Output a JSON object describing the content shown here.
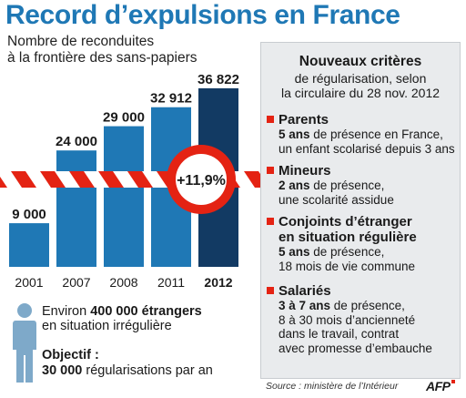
{
  "title": "Record d’expulsions en France",
  "subtitle_lines": [
    "Nombre de reconduites",
    "à la frontière des sans-papiers"
  ],
  "chart_data": {
    "type": "bar",
    "title": "Record d’expulsions en France",
    "subtitle": "Nombre de reconduites à la frontière des sans-papiers",
    "categories": [
      "2001",
      "2007",
      "2008",
      "2011",
      "2012"
    ],
    "values": [
      9000,
      24000,
      29000,
      32912,
      36822
    ],
    "value_labels": [
      "9 000",
      "24 000",
      "29 000",
      "32 912",
      "36 822"
    ],
    "highlight_index": 4,
    "ylim": [
      0,
      40000
    ],
    "annotation": "+11,9%",
    "colors": {
      "bar": "#1f78b5",
      "highlight": "#123a63",
      "barrier_red": "#e42313"
    }
  },
  "info_box": {
    "heading": "Nouveaux critères",
    "subheading_lines": [
      "de régularisation, selon",
      "la circulaire du 28 nov. 2012"
    ],
    "criteria": [
      {
        "title_lines": [
          "Parents"
        ],
        "body_lines": [
          [
            "5 ans",
            " de présence en France,"
          ],
          [
            "",
            "un enfant scolarisé depuis 3 ans"
          ]
        ]
      },
      {
        "title_lines": [
          "Mineurs"
        ],
        "body_lines": [
          [
            "2 ans",
            " de présence,"
          ],
          [
            "",
            "une scolarité assidue"
          ]
        ]
      },
      {
        "title_lines": [
          "Conjoints d’étranger",
          "en situation régulière"
        ],
        "body_lines": [
          [
            "5 ans",
            " de présence,"
          ],
          [
            "",
            "18 mois de vie commune"
          ]
        ]
      },
      {
        "title_lines": [
          "Salariés"
        ],
        "body_lines": [
          [
            "3 à 7 ans",
            " de présence,"
          ],
          [
            "",
            "8 à 30 mois d’ancienneté"
          ],
          [
            "",
            "dans le travail, contrat"
          ],
          [
            "",
            "avec promesse d’embauche"
          ]
        ]
      }
    ]
  },
  "stat": {
    "prefix": "Environ ",
    "bold": "400 000 étrangers",
    "line2": "en situation irrégulière"
  },
  "objectif": {
    "label": "Objectif :",
    "bold": "30 000",
    "text": " régularisations par an"
  },
  "source": "Source : ministère de l’Intérieur",
  "logo_text": "AFP"
}
